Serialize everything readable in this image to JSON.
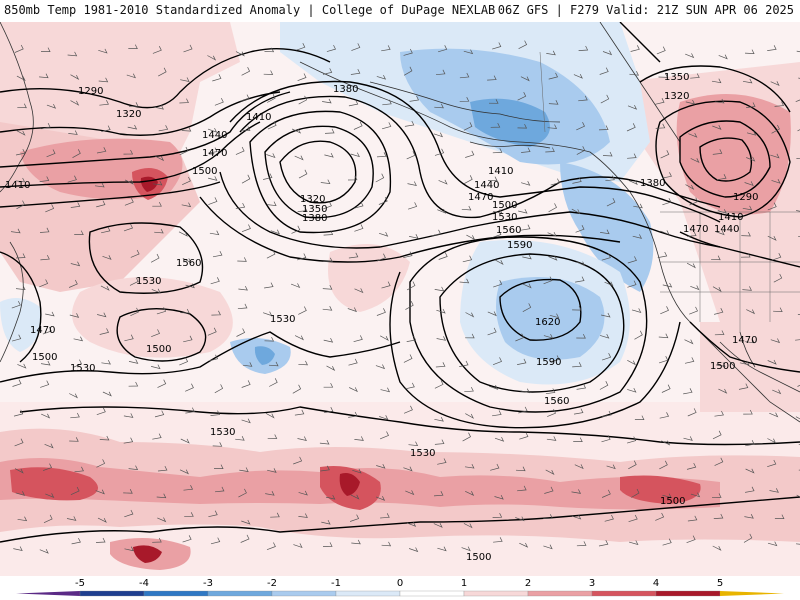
{
  "header": {
    "left": "850mb Temp 1981-2010 Standardized Anomaly | College of DuPage NEXLAB",
    "right": "06Z GFS | F279 Valid: 21Z SUN APR 06 2025"
  },
  "colors": {
    "contour": "#000000",
    "coast": "#333333",
    "wind_barb": "#555555"
  },
  "colorbar": {
    "ticks": [
      "-5",
      "-4",
      "-3",
      "-2",
      "-1",
      "0",
      "1",
      "2",
      "3",
      "4",
      "5"
    ],
    "colors": [
      "#5b2a86",
      "#1f3f8f",
      "#2f78c4",
      "#6ea8dd",
      "#a9cbee",
      "#dbe9f7",
      "#ffffff",
      "#f7d8d8",
      "#eaa0a4",
      "#d5545e",
      "#a8192a",
      "#6a0716",
      "#e8b400"
    ]
  },
  "contour_labels": [
    {
      "id": "1290a",
      "text": "1290"
    },
    {
      "id": "1320a",
      "text": "1320"
    },
    {
      "id": "1410a",
      "text": "1410"
    },
    {
      "id": "1440a",
      "text": "1440"
    },
    {
      "id": "1470a",
      "text": "1470"
    },
    {
      "id": "1500a",
      "text": "1500"
    },
    {
      "id": "1380a",
      "text": "1380"
    },
    {
      "id": "1410b",
      "text": "1410"
    },
    {
      "id": "1320b",
      "text": "1320"
    },
    {
      "id": "1350a",
      "text": "1350"
    },
    {
      "id": "1380b",
      "text": "1380"
    },
    {
      "id": "1560a",
      "text": "1560"
    },
    {
      "id": "1530a",
      "text": "1530"
    },
    {
      "id": "1470b",
      "text": "1470"
    },
    {
      "id": "1500b",
      "text": "1500"
    },
    {
      "id": "1500c",
      "text": "1500"
    },
    {
      "id": "1530b",
      "text": "1530"
    },
    {
      "id": "1530c",
      "text": "1530"
    },
    {
      "id": "1410c",
      "text": "1410"
    },
    {
      "id": "1440b",
      "text": "1440"
    },
    {
      "id": "1470c",
      "text": "1470"
    },
    {
      "id": "1500d",
      "text": "1500"
    },
    {
      "id": "1530d",
      "text": "1530"
    },
    {
      "id": "1560b",
      "text": "1560"
    },
    {
      "id": "1590a",
      "text": "1590"
    },
    {
      "id": "1620a",
      "text": "1620"
    },
    {
      "id": "1590b",
      "text": "1590"
    },
    {
      "id": "1560c",
      "text": "1560"
    },
    {
      "id": "1530e",
      "text": "1530"
    },
    {
      "id": "1530f",
      "text": "1530"
    },
    {
      "id": "1500e",
      "text": "1500"
    },
    {
      "id": "1500f",
      "text": "1500"
    },
    {
      "id": "1350b",
      "text": "1350"
    },
    {
      "id": "1320c",
      "text": "1320"
    },
    {
      "id": "1380c",
      "text": "1380"
    },
    {
      "id": "1290b",
      "text": "1290"
    },
    {
      "id": "1410d",
      "text": "1410"
    },
    {
      "id": "1470d",
      "text": "1470"
    },
    {
      "id": "1440c",
      "text": "1440"
    },
    {
      "id": "1470e",
      "text": "1470"
    },
    {
      "id": "1500g",
      "text": "1500"
    }
  ]
}
